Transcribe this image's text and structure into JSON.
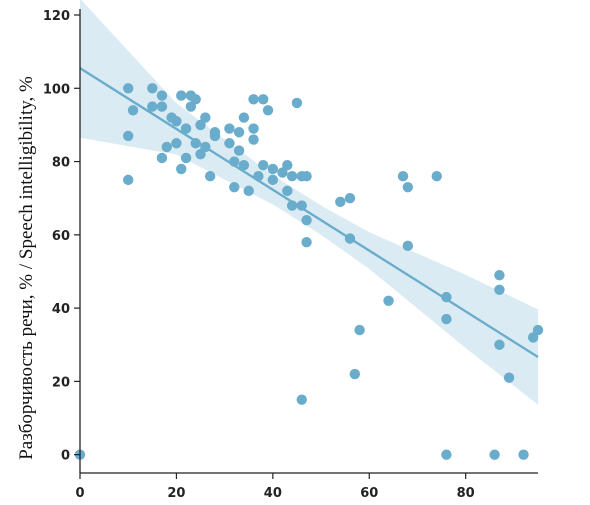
{
  "chart_data": {
    "type": "scatter",
    "title": "",
    "xlabel": "",
    "ylabel": "Разборчивость речи, % / Speech intelligibility, %",
    "xlim": [
      0,
      95
    ],
    "ylim": [
      -5,
      120
    ],
    "xticks": [
      0,
      20,
      40,
      60,
      80
    ],
    "yticks": [
      0,
      20,
      40,
      60,
      80,
      100,
      120
    ],
    "grid": false,
    "colors": {
      "points": "#6aaccb",
      "line": "#6aaccb",
      "band": "#d5e7f1",
      "axis": "#222222"
    },
    "regression": {
      "slope": -0.83,
      "intercept": 105.5,
      "ci_x": [
        0,
        20,
        40,
        50,
        60,
        80,
        95
      ],
      "ci_half_width": [
        19,
        7,
        4,
        4,
        5,
        10,
        13
      ]
    },
    "points": [
      [
        0,
        0
      ],
      [
        10,
        100
      ],
      [
        10,
        87
      ],
      [
        10,
        75
      ],
      [
        11,
        94
      ],
      [
        15,
        95
      ],
      [
        15,
        100
      ],
      [
        17,
        98
      ],
      [
        17,
        95
      ],
      [
        17,
        81
      ],
      [
        18,
        84
      ],
      [
        19,
        92
      ],
      [
        20,
        85
      ],
      [
        20,
        91
      ],
      [
        21,
        98
      ],
      [
        21,
        78
      ],
      [
        22,
        81
      ],
      [
        22,
        89
      ],
      [
        23,
        98
      ],
      [
        23,
        95
      ],
      [
        24,
        97
      ],
      [
        24,
        85
      ],
      [
        25,
        90
      ],
      [
        25,
        82
      ],
      [
        26,
        84
      ],
      [
        26,
        92
      ],
      [
        27,
        76
      ],
      [
        28,
        87
      ],
      [
        28,
        88
      ],
      [
        31,
        89
      ],
      [
        31,
        85
      ],
      [
        32,
        80
      ],
      [
        32,
        73
      ],
      [
        33,
        83
      ],
      [
        33,
        88
      ],
      [
        34,
        92
      ],
      [
        34,
        79
      ],
      [
        35,
        72
      ],
      [
        36,
        97
      ],
      [
        36,
        89
      ],
      [
        36,
        86
      ],
      [
        37,
        76
      ],
      [
        38,
        97
      ],
      [
        38,
        79
      ],
      [
        39,
        94
      ],
      [
        40,
        78
      ],
      [
        40,
        75
      ],
      [
        42,
        77
      ],
      [
        43,
        72
      ],
      [
        43,
        79
      ],
      [
        44,
        68
      ],
      [
        44,
        76
      ],
      [
        45,
        96
      ],
      [
        46,
        68
      ],
      [
        46,
        76
      ],
      [
        47,
        76
      ],
      [
        47,
        64
      ],
      [
        47,
        58
      ],
      [
        46,
        15
      ],
      [
        54,
        69
      ],
      [
        56,
        70
      ],
      [
        56,
        59
      ],
      [
        57,
        22
      ],
      [
        58,
        34
      ],
      [
        64,
        42
      ],
      [
        67,
        76
      ],
      [
        68,
        73
      ],
      [
        68,
        57
      ],
      [
        74,
        76
      ],
      [
        76,
        43
      ],
      [
        76,
        37
      ],
      [
        76,
        0
      ],
      [
        86,
        0
      ],
      [
        87,
        49
      ],
      [
        87,
        45
      ],
      [
        87,
        30
      ],
      [
        89,
        21
      ],
      [
        92,
        0
      ],
      [
        94,
        32
      ],
      [
        95,
        34
      ]
    ]
  }
}
